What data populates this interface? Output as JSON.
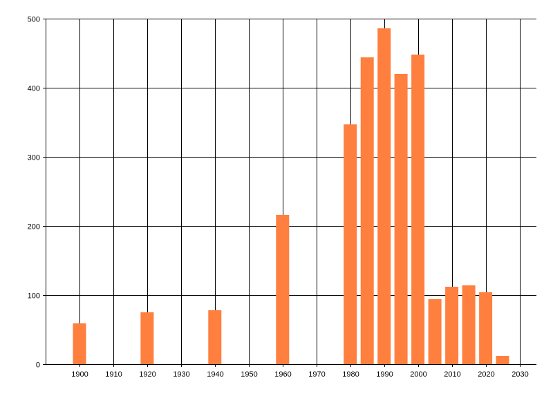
{
  "chart_data": {
    "type": "bar",
    "title": "",
    "xlabel": "",
    "ylabel": "",
    "x": [
      1900,
      1920,
      1940,
      1960,
      1980,
      1985,
      1990,
      1995,
      2000,
      2005,
      2010,
      2015,
      2020,
      2025
    ],
    "values": [
      59,
      75,
      78,
      216,
      347,
      444,
      486,
      420,
      448,
      94,
      112,
      114,
      104,
      12
    ],
    "xlim": [
      1890,
      2035
    ],
    "ylim": [
      0,
      500
    ],
    "xticks": [
      "1900",
      "1910",
      "1920",
      "1930",
      "1940",
      "1950",
      "1960",
      "1970",
      "1980",
      "1990",
      "2000",
      "2010",
      "2020",
      "2030"
    ],
    "yticks": [
      "0",
      "100",
      "200",
      "300",
      "400",
      "500"
    ],
    "grid": true,
    "bar_color": "#ff7f3f"
  }
}
